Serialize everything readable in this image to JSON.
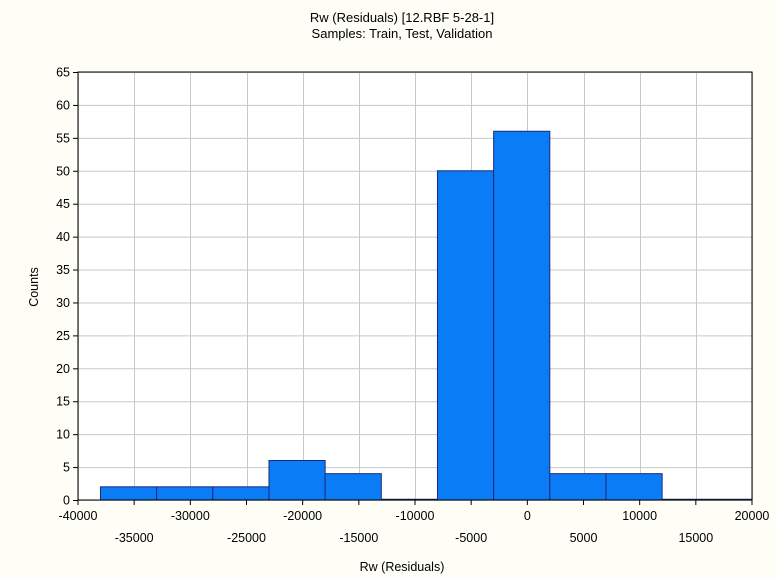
{
  "chart_data": {
    "type": "bar",
    "title": "Rw (Residuals) [12.RBF 5-28-1]",
    "subtitle": "Samples: Train, Test, Validation",
    "xlabel": "Rw (Residuals)",
    "ylabel": "Counts",
    "xlim": [
      -40000,
      20000
    ],
    "ylim": [
      0,
      65
    ],
    "grid": true,
    "y_ticks": [
      "0",
      "5",
      "10",
      "15",
      "20",
      "25",
      "30",
      "35",
      "40",
      "45",
      "50",
      "55",
      "60",
      "65"
    ],
    "x_ticks_upper": [
      "-40000",
      "-30000",
      "-20000",
      "-10000",
      "0",
      "10000",
      "20000"
    ],
    "x_ticks_lower": [
      "-35000",
      "-25000",
      "-15000",
      "-5000",
      "5000",
      "15000"
    ],
    "bins": [
      {
        "x0": -38000,
        "x1": -33000,
        "count": 2
      },
      {
        "x0": -33000,
        "x1": -28000,
        "count": 2
      },
      {
        "x0": -28000,
        "x1": -23000,
        "count": 2
      },
      {
        "x0": -23000,
        "x1": -18000,
        "count": 6
      },
      {
        "x0": -18000,
        "x1": -13000,
        "count": 4
      },
      {
        "x0": -13000,
        "x1": -8000,
        "count": 0
      },
      {
        "x0": -8000,
        "x1": -3000,
        "count": 50
      },
      {
        "x0": -3000,
        "x1": 2000,
        "count": 56
      },
      {
        "x0": 2000,
        "x1": 7000,
        "count": 4
      },
      {
        "x0": 7000,
        "x1": 12000,
        "count": 4
      },
      {
        "x0": 12000,
        "x1": 17000,
        "count": 0
      },
      {
        "x0": 17000,
        "x1": 22000,
        "count": 0
      }
    ],
    "colors": {
      "bar_fill": "#0a7cf6",
      "bar_stroke": "#1c2a7a",
      "grid": "#c8c8c8",
      "background": "#ffffff"
    }
  }
}
